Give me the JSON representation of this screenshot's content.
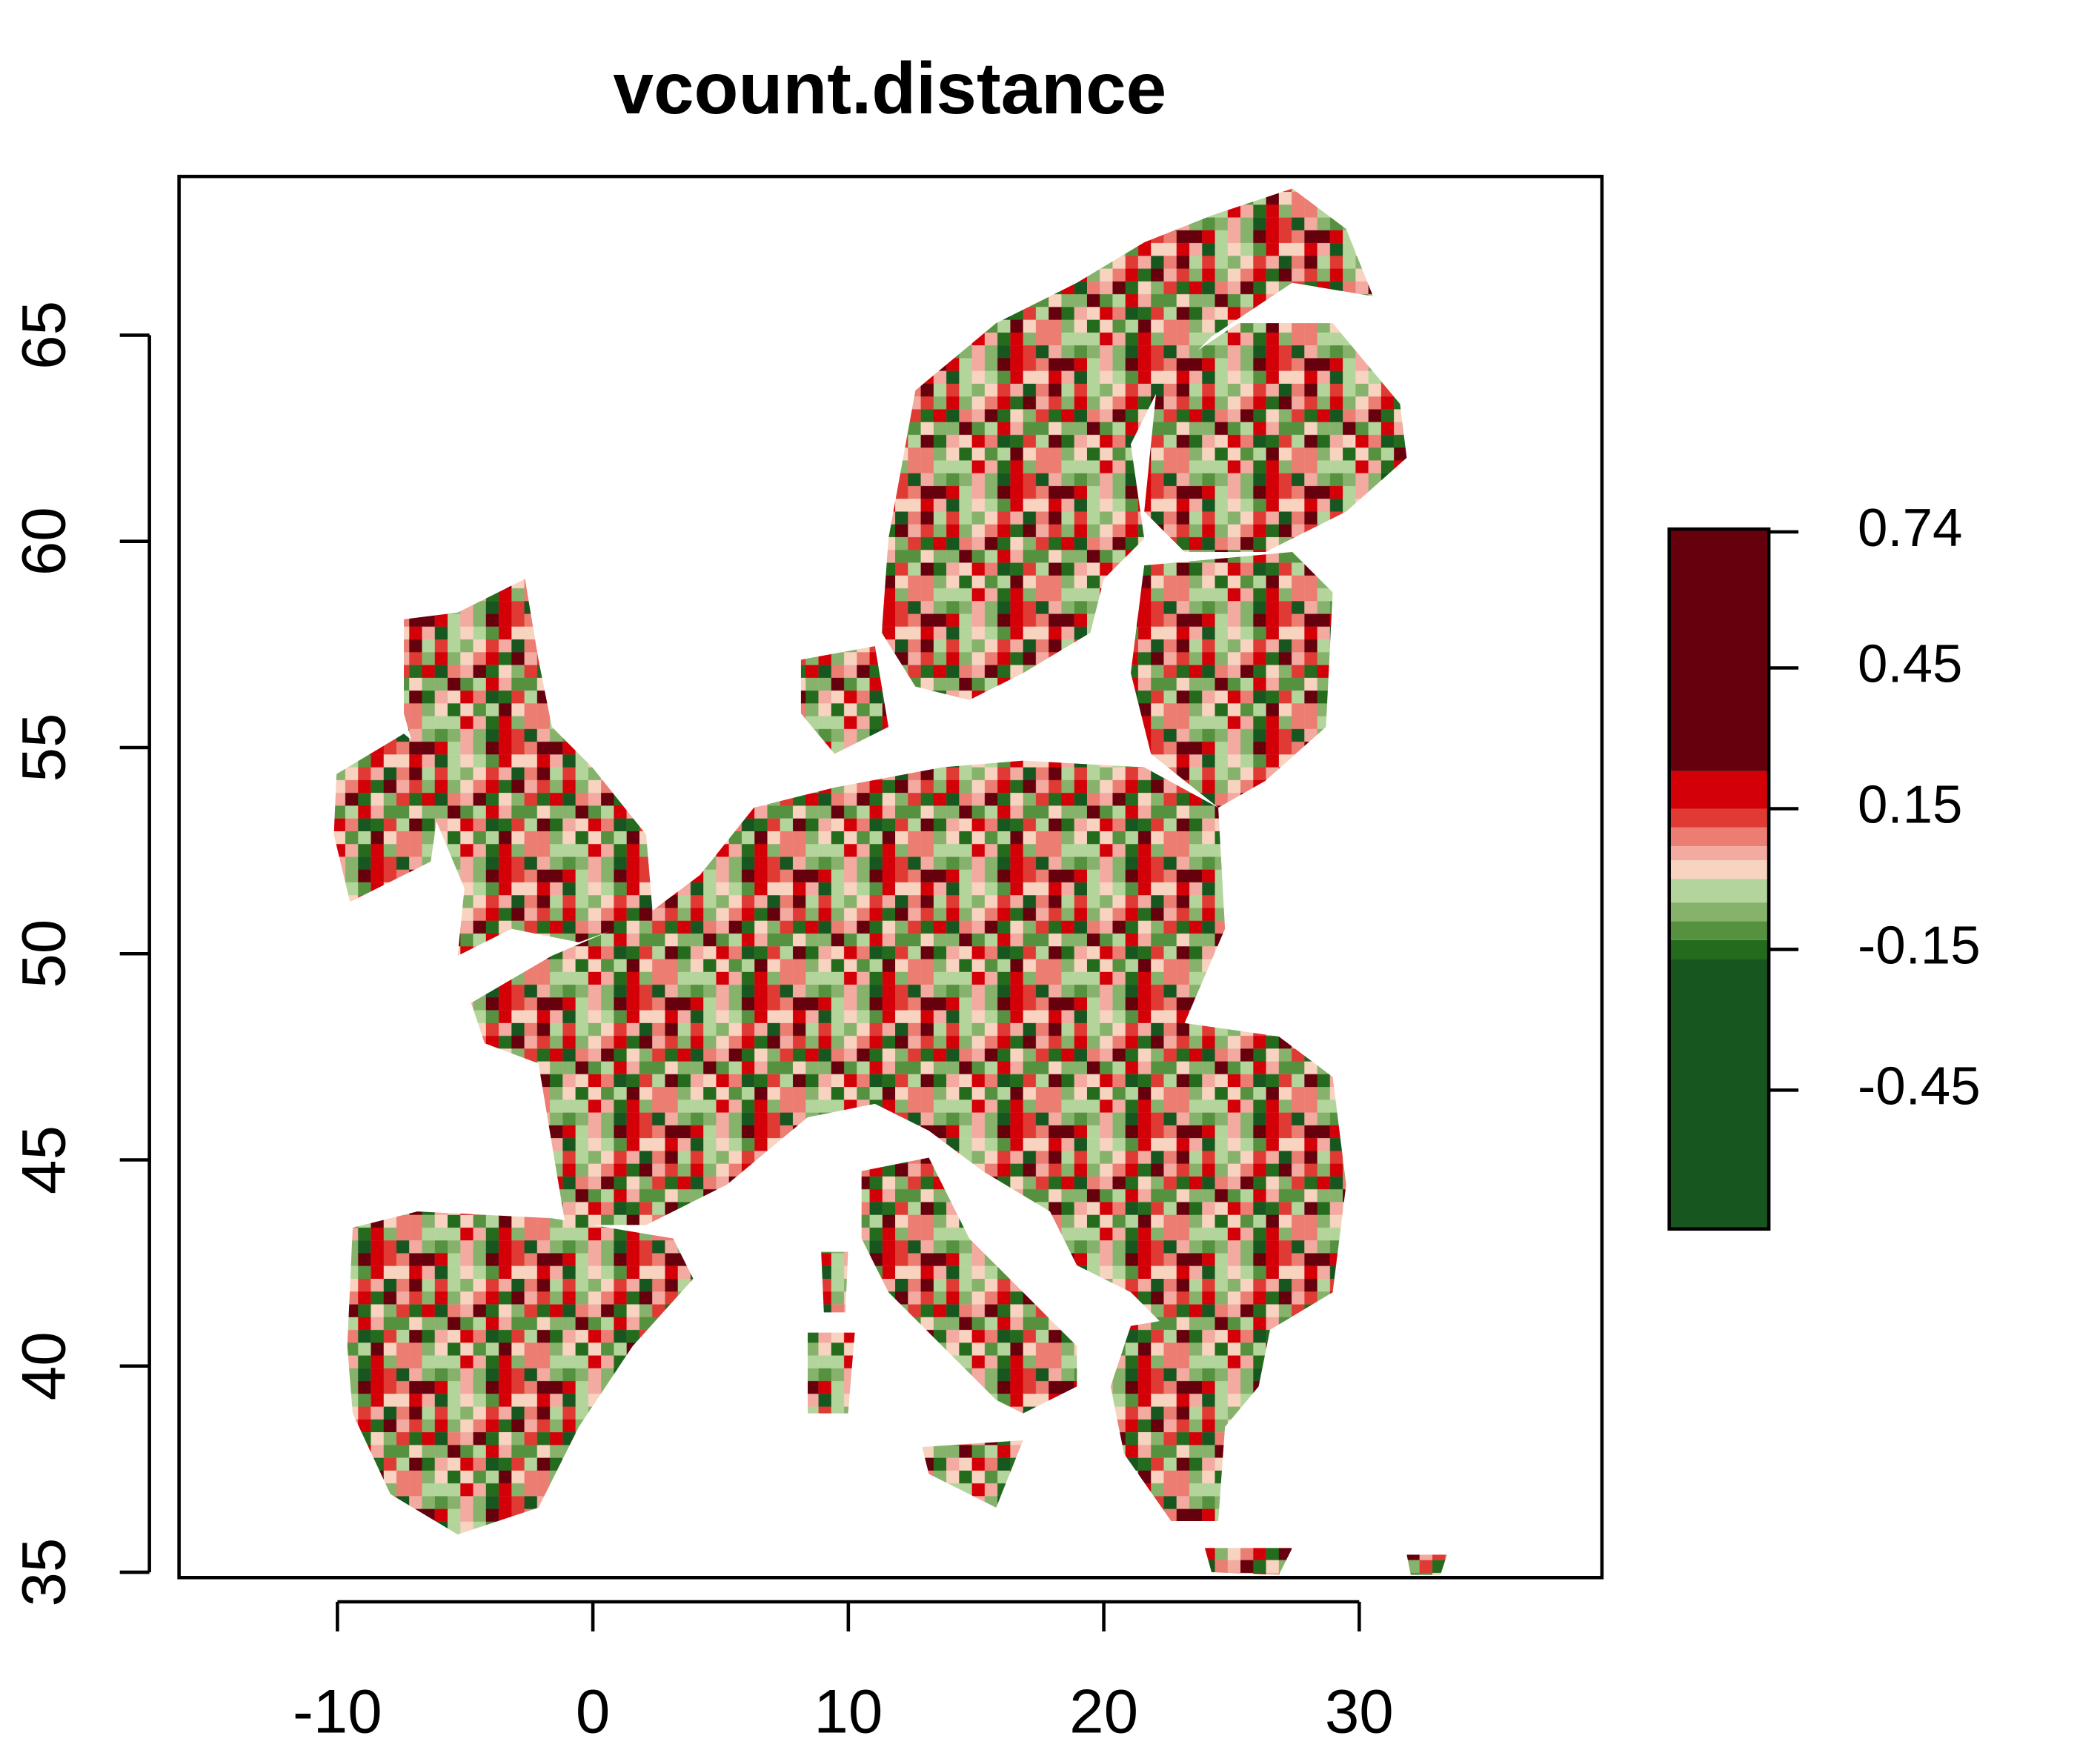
{
  "chart_data": {
    "type": "heatmap",
    "title": "vcount.distance",
    "xlim": [
      -16.2,
      39.5
    ],
    "xticks": [
      -10,
      0,
      10,
      20,
      30
    ],
    "ylim": [
      34.87,
      68.85
    ],
    "yticks": [
      35,
      40,
      45,
      50,
      55,
      60,
      65
    ],
    "colorbar": {
      "breaks": [
        -0.746,
        -0.17,
        -0.13,
        -0.09,
        -0.05,
        0,
        0.04,
        0.07,
        0.11,
        0.15,
        0.23,
        0.746
      ],
      "colors": [
        "#18561f",
        "#246b1e",
        "#56913f",
        "#86b26c",
        "#b3d59b",
        "#f7d3c0",
        "#f3aaa0",
        "#ec7d72",
        "#e03a34",
        "#d40008",
        "#67000d"
      ],
      "ticks": [
        0.74,
        0.45,
        0.15,
        -0.15,
        -0.45
      ]
    }
  }
}
